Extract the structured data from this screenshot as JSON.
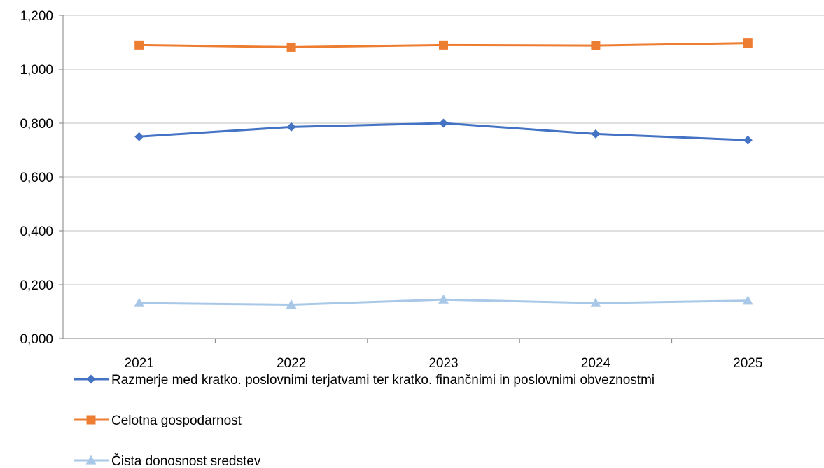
{
  "chart_data": {
    "type": "line",
    "categories": [
      "2021",
      "2022",
      "2023",
      "2024",
      "2025"
    ],
    "ylim": [
      0,
      1.2
    ],
    "yticks": [
      "0,000",
      "0,200",
      "0,400",
      "0,600",
      "0,800",
      "1,000",
      "1,200"
    ],
    "grid": true,
    "legend": "bottom",
    "series": [
      {
        "name": "Razmerje med kratko. poslovnimi terjatvami ter kratko. finančnimi in poslovnimi obveznostmi",
        "values": [
          0.75,
          0.786,
          0.8,
          0.76,
          0.737
        ],
        "color": "#4472C4",
        "marker": "diamond"
      },
      {
        "name": "Celotna gospodarnost",
        "values": [
          1.09,
          1.082,
          1.09,
          1.088,
          1.097
        ],
        "color": "#ED7D31",
        "marker": "square"
      },
      {
        "name": "Čista donosnost sredstev",
        "values": [
          0.132,
          0.126,
          0.145,
          0.132,
          0.141
        ],
        "color": "#A9C8E8",
        "marker": "triangle"
      }
    ]
  }
}
